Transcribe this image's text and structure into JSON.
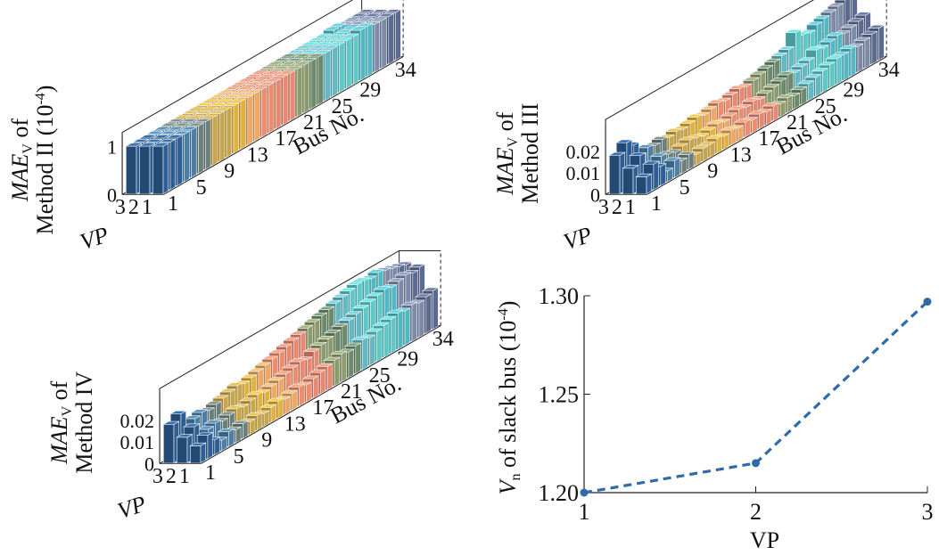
{
  "chart_data": [
    {
      "type": "bar3d",
      "zlabel_main": "MAE",
      "zlabel_sub": "V",
      "zlabel_suffix": " of",
      "zlabel_line2": "Method II (10",
      "zlabel_line2_exp": "-4",
      "zlabel_line2_close": ")",
      "xlabel": "Bus No.",
      "ylabel": "VP",
      "xticks": [
        "1",
        "5",
        "9",
        "13",
        "17",
        "21",
        "25",
        "29",
        "34"
      ],
      "yticks": [
        "3",
        "2",
        "1"
      ],
      "zticks": [
        "0",
        "1"
      ],
      "zlim": [
        0,
        1.3
      ],
      "x": [
        1,
        2,
        3,
        4,
        5,
        6,
        7,
        8,
        9,
        10,
        11,
        12,
        13,
        14,
        15,
        16,
        17,
        18,
        19,
        20,
        21,
        22,
        23,
        24,
        25,
        26,
        27,
        28,
        29,
        30,
        31,
        32,
        33,
        34
      ],
      "series": [
        {
          "vp": 1,
          "values": [
            1.0,
            1.0,
            1.0,
            1.0,
            1.0,
            1.0,
            1.0,
            1.0,
            1.0,
            1.0,
            1.0,
            1.0,
            1.0,
            1.0,
            1.0,
            1.0,
            1.0,
            1.0,
            1.0,
            1.0,
            1.0,
            1.0,
            1.0,
            1.0,
            1.0,
            1.0,
            1.0,
            1.0,
            1.05,
            1.05,
            1.0,
            1.0,
            1.0,
            1.0
          ]
        },
        {
          "vp": 2,
          "values": [
            1.0,
            1.0,
            1.0,
            1.0,
            1.0,
            1.0,
            1.0,
            1.0,
            1.0,
            1.0,
            1.0,
            1.0,
            1.0,
            1.0,
            1.0,
            1.0,
            1.0,
            1.0,
            1.0,
            1.0,
            1.0,
            1.0,
            1.0,
            1.0,
            1.0,
            1.0,
            1.0,
            1.0,
            1.0,
            1.0,
            1.0,
            1.0,
            1.0,
            1.0
          ]
        },
        {
          "vp": 3,
          "values": [
            1.0,
            1.0,
            1.0,
            1.0,
            1.0,
            1.0,
            1.0,
            1.0,
            1.0,
            1.0,
            1.0,
            1.0,
            1.0,
            1.0,
            1.0,
            1.0,
            1.0,
            1.0,
            1.0,
            1.0,
            1.0,
            1.0,
            1.0,
            1.0,
            1.0,
            1.0,
            1.0,
            1.0,
            1.05,
            1.05,
            1.0,
            1.0,
            1.0,
            1.0
          ]
        }
      ]
    },
    {
      "type": "bar3d",
      "zlabel_main": "MAE",
      "zlabel_sub": "V",
      "zlabel_suffix": " of",
      "zlabel_line2": "Method III",
      "xlabel": "Bus No.",
      "ylabel": "VP",
      "xticks": [
        "1",
        "5",
        "9",
        "13",
        "17",
        "21",
        "25",
        "29",
        "34"
      ],
      "yticks": [
        "3",
        "2",
        "1"
      ],
      "zticks": [
        "0",
        "0.01",
        "0.02"
      ],
      "zlim": [
        0,
        0.035
      ],
      "x": [
        1,
        2,
        3,
        4,
        5,
        6,
        7,
        8,
        9,
        10,
        11,
        12,
        13,
        14,
        15,
        16,
        17,
        18,
        19,
        20,
        21,
        22,
        23,
        24,
        25,
        26,
        27,
        28,
        29,
        30,
        31,
        32,
        33,
        34
      ],
      "series": [
        {
          "vp": 1,
          "values": [
            0.008,
            0.012,
            0.009,
            0.005,
            0.008,
            0.006,
            0.007,
            0.005,
            0.006,
            0.006,
            0.007,
            0.006,
            0.007,
            0.006,
            0.007,
            0.006,
            0.007,
            0.006,
            0.007,
            0.006,
            0.007,
            0.006,
            0.007,
            0.008,
            0.009,
            0.01,
            0.011,
            0.012,
            0.012,
            0.013,
            0.012,
            0.013,
            0.014,
            0.015
          ]
        },
        {
          "vp": 2,
          "values": [
            0.012,
            0.016,
            0.006,
            0.008,
            0.01,
            0.009,
            0.008,
            0.009,
            0.01,
            0.009,
            0.008,
            0.009,
            0.01,
            0.009,
            0.01,
            0.011,
            0.01,
            0.011,
            0.01,
            0.011,
            0.012,
            0.013,
            0.014,
            0.013,
            0.014,
            0.015,
            0.018,
            0.017,
            0.018,
            0.019,
            0.018,
            0.019,
            0.02,
            0.021
          ]
        },
        {
          "vp": 3,
          "values": [
            0.018,
            0.022,
            0.019,
            0.012,
            0.014,
            0.013,
            0.014,
            0.013,
            0.014,
            0.013,
            0.014,
            0.015,
            0.014,
            0.015,
            0.016,
            0.015,
            0.016,
            0.017,
            0.016,
            0.017,
            0.018,
            0.019,
            0.02,
            0.021,
            0.022,
            0.028,
            0.025,
            0.024,
            0.026,
            0.027,
            0.028,
            0.029,
            0.03,
            0.031
          ]
        }
      ]
    },
    {
      "type": "bar3d",
      "zlabel_main": "MAE",
      "zlabel_sub": "V",
      "zlabel_suffix": " of",
      "zlabel_line2": "Method IV",
      "xlabel": "Bus No.",
      "ylabel": "VP",
      "xticks": [
        "1",
        "5",
        "9",
        "13",
        "17",
        "21",
        "25",
        "29",
        "34"
      ],
      "yticks": [
        "3",
        "2",
        "1"
      ],
      "zticks": [
        "0",
        "0.01",
        "0.02"
      ],
      "zlim": [
        0,
        0.035
      ],
      "x": [
        1,
        2,
        3,
        4,
        5,
        6,
        7,
        8,
        9,
        10,
        11,
        12,
        13,
        14,
        15,
        16,
        17,
        18,
        19,
        20,
        21,
        22,
        23,
        24,
        25,
        26,
        27,
        28,
        29,
        30,
        31,
        32,
        33,
        34
      ],
      "series": [
        {
          "vp": 1,
          "values": [
            0.008,
            0.011,
            0.007,
            0.005,
            0.007,
            0.006,
            0.007,
            0.006,
            0.007,
            0.006,
            0.007,
            0.008,
            0.007,
            0.008,
            0.009,
            0.008,
            0.009,
            0.01,
            0.011,
            0.012,
            0.013,
            0.012,
            0.013,
            0.014,
            0.013,
            0.014,
            0.015,
            0.016,
            0.017,
            0.016,
            0.017,
            0.016,
            0.017,
            0.018
          ]
        },
        {
          "vp": 2,
          "values": [
            0.012,
            0.015,
            0.008,
            0.01,
            0.011,
            0.01,
            0.011,
            0.012,
            0.011,
            0.012,
            0.013,
            0.012,
            0.013,
            0.014,
            0.015,
            0.016,
            0.017,
            0.016,
            0.018,
            0.019,
            0.02,
            0.021,
            0.022,
            0.023,
            0.024,
            0.025,
            0.026,
            0.027,
            0.028,
            0.027,
            0.028,
            0.029,
            0.028,
            0.029
          ]
        },
        {
          "vp": 3,
          "values": [
            0.018,
            0.021,
            0.013,
            0.015,
            0.016,
            0.015,
            0.016,
            0.017,
            0.018,
            0.019,
            0.018,
            0.019,
            0.02,
            0.021,
            0.022,
            0.023,
            0.024,
            0.025,
            0.026,
            0.027,
            0.028,
            0.029,
            0.03,
            0.031,
            0.032,
            0.033,
            0.034,
            0.034,
            0.033,
            0.034,
            0.033,
            0.032,
            0.031,
            0.03
          ]
        }
      ]
    },
    {
      "type": "line",
      "xlabel": "VP",
      "ylabel_pre": "V",
      "ylabel_sub": "n",
      "ylabel_mid": " of slack bus (10",
      "ylabel_exp": "-4",
      "ylabel_close": ")",
      "x": [
        1,
        2,
        3
      ],
      "xticks": [
        "1",
        "2",
        "3"
      ],
      "yticks": [
        "1.20",
        "1.25",
        "1.30"
      ],
      "ylim": [
        1.2,
        1.3
      ],
      "series": [
        {
          "values": [
            1.2,
            1.215,
            1.297
          ]
        }
      ],
      "colors": {
        "line": "#2f6ba8"
      }
    }
  ],
  "colors": {
    "palette": [
      "#2c5f96",
      "#4a7fa8",
      "#6b7f7a",
      "#c9a548",
      "#e2b03c",
      "#eea862",
      "#ee8d6c",
      "#e88870",
      "#8c9a6c",
      "#6b8a6a",
      "#62b9c4",
      "#5cc8c8",
      "#4eb8c4",
      "#7a8aa8",
      "#5a6a90"
    ]
  }
}
